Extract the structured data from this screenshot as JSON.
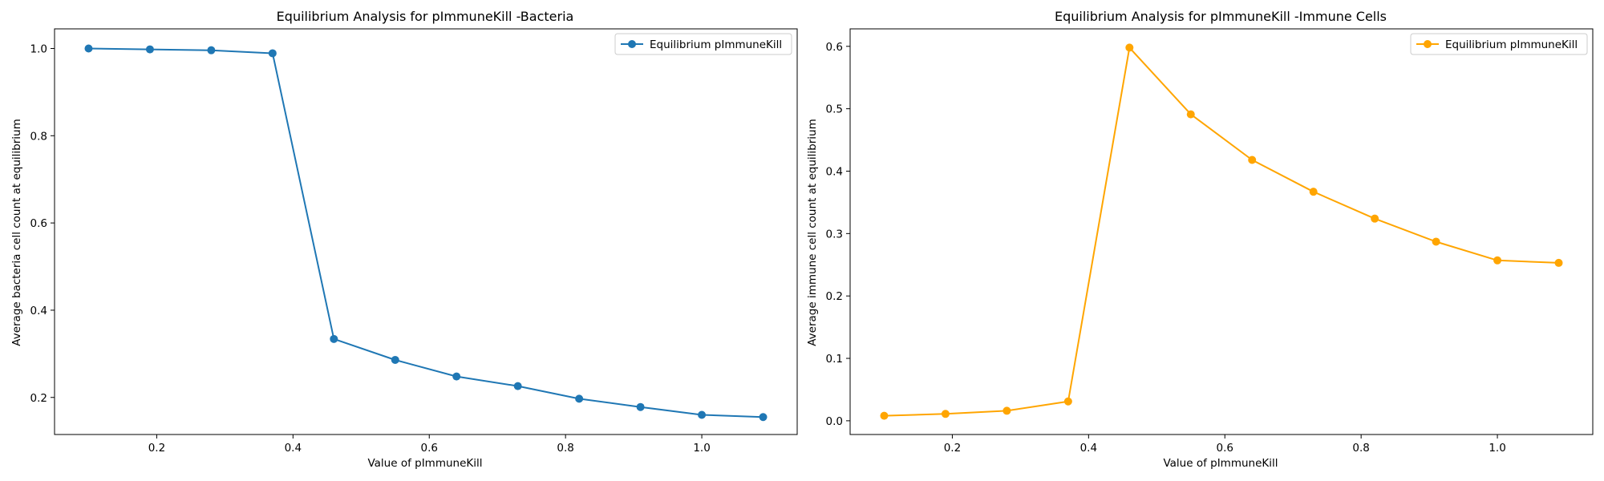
{
  "chart_data": [
    {
      "type": "line",
      "title": "Equilibrium Analysis for pImmuneKill -Bacteria",
      "xlabel": "Value of pImmuneKill",
      "ylabel": "Average bacteria cell count at equilibrium",
      "xlim": [
        0.05,
        1.14
      ],
      "ylim": [
        0.115,
        1.045
      ],
      "xticks": [
        0.2,
        0.4,
        0.6,
        0.8,
        1.0
      ],
      "xtick_labels": [
        "0.2",
        "0.4",
        "0.6",
        "0.8",
        "1.0"
      ],
      "yticks": [
        0.2,
        0.4,
        0.6,
        0.8,
        1.0
      ],
      "ytick_labels": [
        "0.2",
        "0.4",
        "0.6",
        "0.8",
        "1.0"
      ],
      "grid": false,
      "legend_position": "top-right",
      "series": [
        {
          "name": "Equilibrium pImmuneKill",
          "color": "#1f77b4",
          "marker": "circle",
          "x": [
            0.1,
            0.19,
            0.28,
            0.37,
            0.46,
            0.55,
            0.64,
            0.73,
            0.82,
            0.91,
            1.0,
            1.09
          ],
          "y": [
            1.0,
            0.998,
            0.996,
            0.989,
            0.334,
            0.286,
            0.248,
            0.226,
            0.197,
            0.178,
            0.16,
            0.155
          ]
        }
      ]
    },
    {
      "type": "line",
      "title": "Equilibrium Analysis for pImmuneKill -Immune Cells",
      "xlabel": "Value of pImmuneKill",
      "ylabel": "Average immune cell count at equilibrium",
      "xlim": [
        0.05,
        1.14
      ],
      "ylim": [
        -0.022,
        0.628
      ],
      "xticks": [
        0.2,
        0.4,
        0.6,
        0.8,
        1.0
      ],
      "xtick_labels": [
        "0.2",
        "0.4",
        "0.6",
        "0.8",
        "1.0"
      ],
      "yticks": [
        0.0,
        0.1,
        0.2,
        0.3,
        0.4,
        0.5,
        0.6
      ],
      "ytick_labels": [
        "0.0",
        "0.1",
        "0.2",
        "0.3",
        "0.4",
        "0.5",
        "0.6"
      ],
      "grid": false,
      "legend_position": "top-right",
      "series": [
        {
          "name": "Equilibrium pImmuneKill",
          "color": "#ffa500",
          "marker": "circle",
          "x": [
            0.1,
            0.19,
            0.28,
            0.37,
            0.46,
            0.55,
            0.64,
            0.73,
            0.82,
            0.91,
            1.0,
            1.09
          ],
          "y": [
            0.008,
            0.011,
            0.016,
            0.031,
            0.598,
            0.491,
            0.418,
            0.367,
            0.324,
            0.287,
            0.257,
            0.253
          ]
        }
      ]
    }
  ]
}
